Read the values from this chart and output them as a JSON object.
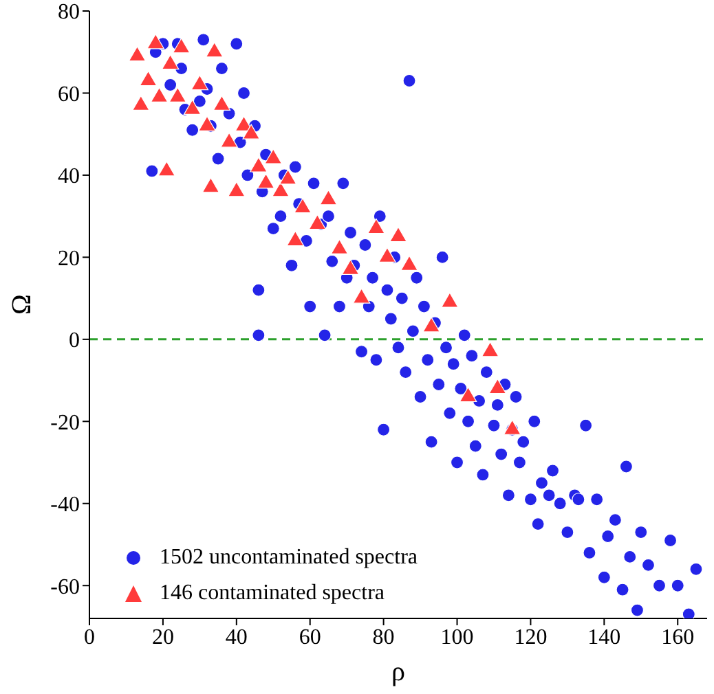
{
  "chart_data": {
    "type": "scatter",
    "xlabel": "ρ",
    "ylabel": "Ω",
    "xlim": [
      0,
      168
    ],
    "ylim": [
      -68,
      80
    ],
    "xticks": [
      0,
      20,
      40,
      60,
      80,
      100,
      120,
      140,
      160
    ],
    "yticks": [
      -60,
      -40,
      -20,
      0,
      20,
      40,
      60,
      80
    ],
    "grid": false,
    "legend": "bottom left",
    "ref_lines": [
      {
        "axis": "y",
        "value": 0,
        "color": "#2ca02c",
        "line_style": "dashed"
      }
    ],
    "series": [
      {
        "name": "1502 uncontaminated spectra",
        "color": "#2424e8",
        "marker": "circle",
        "x": [
          17,
          18,
          20,
          22,
          24,
          25,
          26,
          28,
          30,
          31,
          32,
          33,
          35,
          36,
          38,
          40,
          41,
          42,
          43,
          45,
          46,
          46,
          47,
          48,
          50,
          52,
          53,
          55,
          56,
          57,
          59,
          60,
          61,
          63,
          64,
          65,
          66,
          68,
          69,
          70,
          71,
          72,
          74,
          75,
          76,
          77,
          78,
          79,
          80,
          81,
          82,
          83,
          84,
          85,
          86,
          87,
          88,
          89,
          90,
          91,
          92,
          93,
          94,
          95,
          96,
          97,
          98,
          99,
          100,
          101,
          102,
          103,
          104,
          105,
          106,
          107,
          108,
          110,
          111,
          112,
          113,
          114,
          115,
          116,
          117,
          118,
          120,
          121,
          122,
          123,
          125,
          126,
          128,
          130,
          132,
          133,
          135,
          136,
          138,
          140,
          141,
          143,
          145,
          146,
          147,
          149,
          150,
          152,
          155,
          158,
          160,
          163,
          165
        ],
        "values": [
          41,
          70,
          72,
          62,
          72,
          66,
          56,
          51,
          58,
          73,
          61,
          52,
          44,
          66,
          55,
          72,
          48,
          60,
          40,
          52,
          12,
          1,
          36,
          45,
          27,
          30,
          40,
          18,
          42,
          33,
          24,
          8,
          38,
          28,
          1,
          30,
          19,
          8,
          38,
          15,
          26,
          18,
          -3,
          23,
          8,
          15,
          -5,
          30,
          -22,
          12,
          5,
          20,
          -2,
          10,
          -8,
          63,
          2,
          15,
          -14,
          8,
          -5,
          -25,
          4,
          -11,
          20,
          -2,
          -18,
          -6,
          -30,
          -12,
          1,
          -20,
          -4,
          -26,
          -15,
          -33,
          -8,
          -21,
          -16,
          -28,
          -11,
          -38,
          -22,
          -14,
          -30,
          -25,
          -39,
          -20,
          -45,
          -35,
          -38,
          -32,
          -40,
          -47,
          -38,
          -39,
          -21,
          -52,
          -39,
          -58,
          -48,
          -44,
          -61,
          -31,
          -53,
          -66,
          -47,
          -55,
          -60,
          -49,
          -60,
          -67,
          -56
        ]
      },
      {
        "name": "146 contaminated spectra",
        "color": "#ff3b3b",
        "marker": "triangle",
        "x": [
          13,
          14,
          16,
          18,
          19,
          21,
          22,
          24,
          25,
          28,
          30,
          32,
          33,
          34,
          36,
          38,
          40,
          42,
          44,
          46,
          48,
          50,
          52,
          54,
          56,
          58,
          62,
          65,
          68,
          71,
          74,
          78,
          81,
          84,
          87,
          93,
          98,
          103,
          109,
          111,
          115
        ],
        "values": [
          69,
          57,
          63,
          72,
          59,
          41,
          67,
          59,
          71,
          56,
          62,
          52,
          37,
          70,
          57,
          48,
          36,
          52,
          50,
          42,
          38,
          44,
          36,
          39,
          24,
          32,
          28,
          34,
          22,
          17,
          10,
          27,
          20,
          25,
          18,
          3,
          9,
          -14,
          -3,
          -12,
          -22
        ]
      }
    ]
  }
}
